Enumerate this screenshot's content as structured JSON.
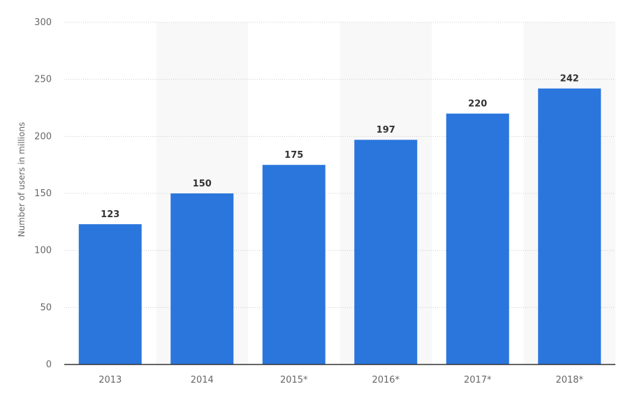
{
  "chart_data": {
    "type": "bar",
    "categories": [
      "2013",
      "2014",
      "2015*",
      "2016*",
      "2017*",
      "2018*"
    ],
    "values": [
      123,
      150,
      175,
      197,
      220,
      242
    ],
    "ylabel": "Number of users in millions",
    "ylim": [
      0,
      300
    ],
    "yticks": [
      "0",
      "50",
      "100",
      "150",
      "200",
      "250",
      "300"
    ],
    "grid": true,
    "bar_color": "#2a76dd",
    "band_color": "#f8f8f8"
  }
}
